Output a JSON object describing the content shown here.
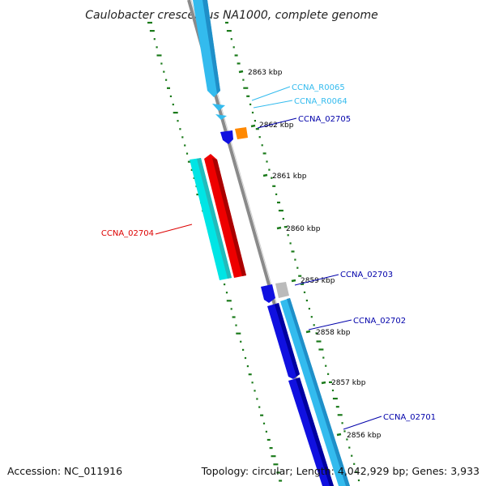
{
  "title": "Caulobacter crescentus NA1000, complete genome",
  "footer": {
    "accession": "Accession: NC_011916",
    "summary": "Topology: circular; Length: 4,042,929 bp; Genes: 3,933"
  },
  "ticks": [
    {
      "label": "2863 kbp"
    },
    {
      "label": "2862 kbp"
    },
    {
      "label": "2861 kbp"
    },
    {
      "label": "2860 kbp"
    },
    {
      "label": "2859 kbp"
    },
    {
      "label": "2858 kbp"
    },
    {
      "label": "2857 kbp"
    },
    {
      "label": "2856 kbp"
    }
  ],
  "gene_labels": [
    {
      "name": "CCNA_R0065",
      "color": "#33bbee"
    },
    {
      "name": "CCNA_R0064",
      "color": "#33bbee"
    },
    {
      "name": "CCNA_02705",
      "color": "#0000aa"
    },
    {
      "name": "CCNA_02704",
      "color": "#dd0000"
    },
    {
      "name": "CCNA_02703",
      "color": "#0000aa"
    },
    {
      "name": "CCNA_02702",
      "color": "#0000aa"
    },
    {
      "name": "CCNA_02701",
      "color": "#0000aa"
    }
  ],
  "colors": {
    "backbone": "#8a8a8a",
    "gc_track": "#1a7a1a",
    "cds_blue": "#1010e0",
    "rrna_cyan": "#33bbee",
    "cds_cyan": "#00e5e5",
    "cds_red": "#ee0000",
    "orange": "#ff8800",
    "grey_feature": "#bbbbbb"
  }
}
